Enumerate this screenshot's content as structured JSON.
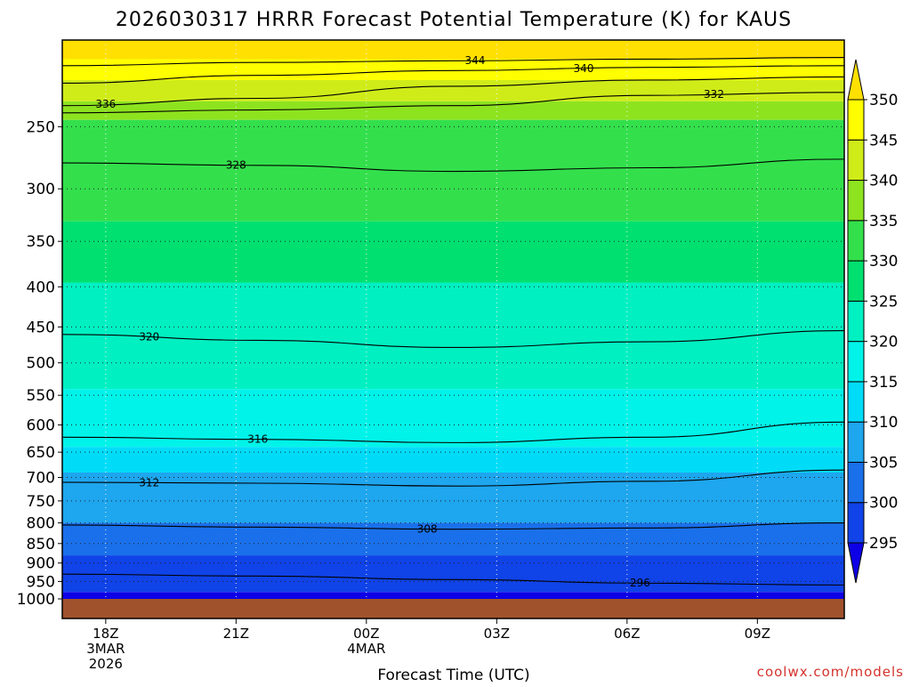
{
  "chart_data": {
    "type": "heatmap",
    "title": "2026030317 HRRR Forecast Potential Temperature (K) for KAUS",
    "xlabel": "Forecast Time (UTC)",
    "ylabel": "",
    "credit": "coolwx.com/models",
    "x_start_hour": 17,
    "x_end_hour": 11,
    "x_ticks": [
      {
        "hour": 18,
        "lines": [
          "18Z",
          "3MAR",
          "2026"
        ]
      },
      {
        "hour": 21,
        "lines": [
          "21Z"
        ]
      },
      {
        "hour": 24,
        "lines": [
          "00Z",
          "4MAR"
        ]
      },
      {
        "hour": 27,
        "lines": [
          "03Z"
        ]
      },
      {
        "hour": 30,
        "lines": [
          "06Z"
        ]
      },
      {
        "hour": 33,
        "lines": [
          "09Z"
        ]
      }
    ],
    "y_axis": {
      "scale": "log",
      "inverted": true,
      "units": "hPa",
      "range": [
        1000,
        200
      ]
    },
    "y_ticks": [
      250,
      300,
      350,
      400,
      450,
      500,
      550,
      600,
      650,
      700,
      750,
      800,
      850,
      900,
      950,
      1000
    ],
    "colorbar": {
      "levels": [
        295,
        300,
        305,
        310,
        315,
        320,
        325,
        330,
        335,
        340,
        345,
        350
      ],
      "colors": [
        "#0d00e6",
        "#1043e8",
        "#1a70ea",
        "#1ea6ee",
        "#00dcf8",
        "#00f3e9",
        "#00f0c2",
        "#00e070",
        "#33e04c",
        "#8ee31f",
        "#cfec19",
        "#fffe00",
        "#ffe000"
      ],
      "extend": "both"
    },
    "isentropes": [
      {
        "theta": 296,
        "p": [
          930,
          935,
          945,
          955,
          960
        ],
        "label_x_hour": 30.3
      },
      {
        "theta": 308,
        "p": [
          805,
          810,
          815,
          812,
          800
        ],
        "label_x_hour": 25.4
      },
      {
        "theta": 312,
        "p": [
          710,
          712,
          718,
          708,
          685
        ],
        "label_x_hour": 19.0
      },
      {
        "theta": 316,
        "p": [
          622,
          626,
          632,
          622,
          595
        ],
        "label_x_hour": 21.5
      },
      {
        "theta": 320,
        "p": [
          460,
          468,
          478,
          470,
          455
        ],
        "label_x_hour": 19.0
      },
      {
        "theta": 328,
        "p": [
          278,
          280,
          285,
          282,
          275
        ],
        "label_x_hour": 21.0
      },
      {
        "theta": 332,
        "p": [
          240,
          238,
          235,
          228,
          226
        ],
        "label_x_hour": 32.0
      },
      {
        "theta": 336,
        "p": [
          235,
          230,
          222,
          218,
          216
        ],
        "label_x_hour": 18.0
      },
      {
        "theta": 340,
        "p": [
          220,
          215,
          212,
          210,
          209
        ],
        "label_x_hour": 29.0
      },
      {
        "theta": 344,
        "p": [
          209,
          207,
          206,
          205,
          204
        ],
        "label_x_hour": 26.5
      }
    ],
    "ground_color": "#a0522d",
    "ground_pressure": 1000
  }
}
